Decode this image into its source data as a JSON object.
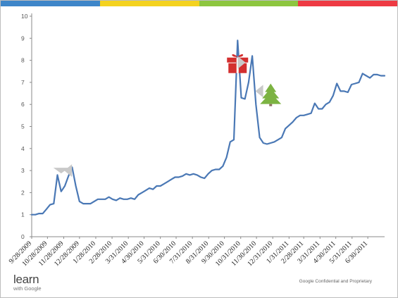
{
  "colors": {
    "bar_blue": "#3e86c9",
    "bar_yellow": "#f4d21f",
    "bar_green": "#8dc63f",
    "bar_red": "#ee3a43",
    "line": "#4a78b5",
    "gift": "#d32f2f",
    "tree": "#7cb342",
    "arrow": "#c9c9c9"
  },
  "icons": [
    "gift-icon",
    "christmas-tree-icon",
    "arrow-icon"
  ],
  "chart_data": {
    "type": "line",
    "title": "",
    "xlabel": "",
    "ylabel": "",
    "ylim": [
      0,
      10
    ],
    "yticks": [
      "0",
      "1",
      "2",
      "3",
      "4",
      "5",
      "6",
      "7",
      "8",
      "9",
      "10"
    ],
    "xlim": [
      "9/28/2009",
      "8/1/2011"
    ],
    "xticks": [
      "9/28/2009",
      "10/28/2009",
      "11/28/2009",
      "12/28/2009",
      "1/28/2010",
      "2/28/2010",
      "3/31/2010",
      "4/30/2010",
      "5/31/2010",
      "6/30/2010",
      "7/31/2010",
      "8/31/2010",
      "9/30/2010",
      "10/31/2010",
      "11/30/2010",
      "12/31/2010",
      "1/31/2011",
      "2/28/2011",
      "3/31/2011",
      "4/30/2011",
      "5/31/2011",
      "6/30/2011"
    ],
    "grid": false,
    "legend": "none",
    "series": [
      {
        "x": [
          "9/28/2009",
          "10/5/2009",
          "10/12/2009",
          "10/19/2009",
          "10/26/2009",
          "11/2/2009",
          "11/9/2009",
          "11/16/2009",
          "11/23/2009",
          "11/30/2009",
          "12/7/2009",
          "12/14/2009",
          "12/21/2009",
          "12/28/2009",
          "1/4/2010",
          "1/11/2010",
          "1/18/2010",
          "1/25/2010",
          "2/1/2010",
          "2/8/2010",
          "2/15/2010",
          "2/22/2010",
          "3/1/2010",
          "3/8/2010",
          "3/15/2010",
          "3/22/2010",
          "3/29/2010",
          "4/5/2010",
          "4/12/2010",
          "4/19/2010",
          "4/26/2010",
          "5/3/2010",
          "5/10/2010",
          "5/17/2010",
          "5/24/2010",
          "5/31/2010",
          "6/7/2010",
          "6/14/2010",
          "6/21/2010",
          "6/28/2010",
          "7/5/2010",
          "7/12/2010",
          "7/19/2010",
          "7/26/2010",
          "8/2/2010",
          "8/9/2010",
          "8/16/2010",
          "8/23/2010",
          "8/30/2010",
          "9/6/2010",
          "9/13/2010",
          "9/20/2010",
          "9/27/2010",
          "10/4/2010",
          "10/11/2010",
          "10/18/2010",
          "10/25/2010",
          "11/1/2010",
          "11/8/2010",
          "11/15/2010",
          "11/22/2010",
          "11/29/2010",
          "12/6/2010",
          "12/13/2010",
          "12/20/2010",
          "12/27/2010",
          "1/3/2011",
          "1/10/2011",
          "1/17/2011",
          "1/24/2011",
          "1/31/2011",
          "2/7/2011",
          "2/14/2011",
          "2/21/2011",
          "2/28/2011",
          "3/7/2011",
          "3/14/2011",
          "3/21/2011",
          "3/28/2011",
          "4/4/2011",
          "4/11/2011",
          "4/18/2011",
          "4/25/2011",
          "5/2/2011",
          "5/9/2011",
          "5/16/2011",
          "5/23/2011",
          "5/30/2011",
          "6/6/2011",
          "6/13/2011",
          "6/20/2011",
          "6/27/2011",
          "7/4/2011",
          "7/11/2011",
          "7/18/2011",
          "7/25/2011",
          "8/1/2011"
        ],
        "y": [
          1.0,
          1.0,
          1.05,
          1.05,
          1.25,
          1.45,
          1.5,
          2.8,
          2.05,
          2.3,
          2.75,
          3.15,
          2.3,
          1.6,
          1.5,
          1.5,
          1.5,
          1.6,
          1.7,
          1.7,
          1.7,
          1.8,
          1.7,
          1.65,
          1.75,
          1.7,
          1.7,
          1.75,
          1.7,
          1.9,
          2.0,
          2.1,
          2.2,
          2.15,
          2.3,
          2.3,
          2.4,
          2.5,
          2.6,
          2.7,
          2.7,
          2.75,
          2.85,
          2.8,
          2.85,
          2.8,
          2.7,
          2.65,
          2.85,
          3.0,
          3.05,
          3.05,
          3.2,
          3.6,
          4.3,
          4.4,
          8.9,
          6.3,
          6.25,
          7.0,
          8.2,
          6.0,
          4.5,
          4.25,
          4.2,
          4.25,
          4.3,
          4.4,
          4.5,
          4.9,
          5.05,
          5.2,
          5.4,
          5.5,
          5.5,
          5.55,
          5.6,
          6.05,
          5.8,
          5.8,
          6.0,
          6.1,
          6.4,
          6.95,
          6.6,
          6.6,
          6.55,
          6.9,
          6.95,
          7.0,
          7.4,
          7.3,
          7.2,
          7.35,
          7.35,
          7.3,
          7.3
        ]
      }
    ],
    "annotations": [
      {
        "type": "arrow",
        "at": "11/23/2009",
        "y": 3.0
      },
      {
        "type": "arrow",
        "at": "12/7/2009",
        "y": 3.0
      },
      {
        "type": "gift-icon",
        "at": "10/25/2010",
        "y": 7.9
      },
      {
        "type": "arrow",
        "at": "11/1/2010",
        "y": 7.9
      },
      {
        "type": "arrow",
        "at": "12/6/2010",
        "y": 6.6
      },
      {
        "type": "christmas-tree-icon",
        "at": "12/27/2010",
        "y": 6.4
      }
    ]
  },
  "logo": {
    "main": "learn",
    "sub": "with Google"
  },
  "footer": {
    "text": "Google Confidential and Proprietary"
  }
}
